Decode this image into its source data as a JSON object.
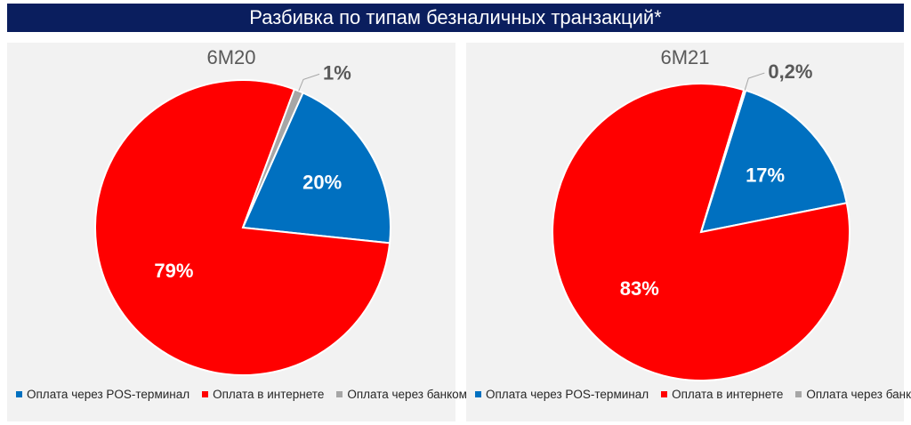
{
  "page_title": "Разбивка по типам безналичных транзакций*",
  "colors": {
    "title_bg": "#0a1e5e",
    "pos": "#0070c0",
    "internet": "#ff0000",
    "atm": "#a6a6a6",
    "panel_bg": "#f2f2f2"
  },
  "chart_data": [
    {
      "type": "pie",
      "title": "6M20",
      "categories": [
        "Оплата через POS-терминал",
        "Оплата в интернете",
        "Оплата через банкомат"
      ],
      "values": [
        20,
        79,
        1
      ],
      "labels": [
        "20%",
        "79%",
        "1%"
      ],
      "legend": [
        "Оплата через POS-терминал",
        "Оплата в интернете",
        "Оплата через банкомат"
      ],
      "legend_position": "bottom-left"
    },
    {
      "type": "pie",
      "title": "6M21",
      "categories": [
        "Оплата через POS-терминал",
        "Оплата в интернете",
        "Оплата через банкомат"
      ],
      "values": [
        17,
        82.8,
        0.2
      ],
      "labels": [
        "17%",
        "83%",
        "0,2%"
      ],
      "legend": [
        "Оплата через POS-терминал",
        "Оплата в интернете",
        "Оплата через банкомат"
      ],
      "legend_position": "bottom-left"
    }
  ]
}
